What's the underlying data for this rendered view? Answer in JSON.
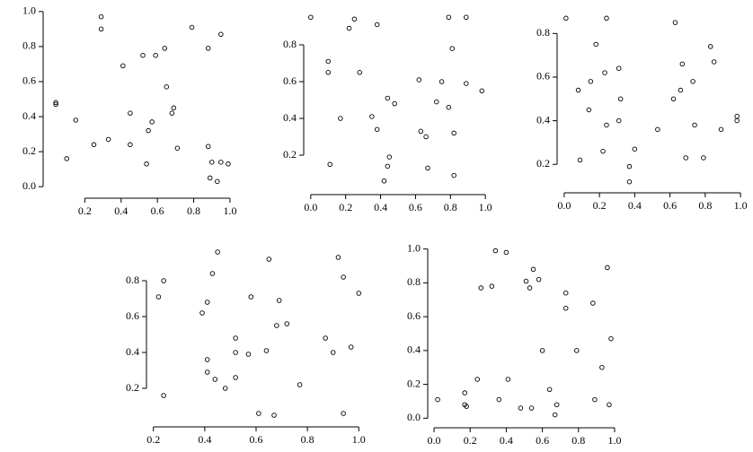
{
  "chart_data": [
    {
      "type": "scatter",
      "x": [
        0.04,
        0.04,
        0.29,
        0.29,
        0.79,
        0.95,
        0.64,
        0.52,
        0.59,
        0.88,
        0.41,
        0.65,
        0.69,
        0.68,
        0.45,
        0.15,
        0.57,
        0.55,
        0.33,
        0.25,
        0.45,
        0.71,
        0.88,
        0.1,
        0.54,
        0.9,
        0.95,
        0.99,
        0.89,
        0.93
      ],
      "values": [
        0.48,
        0.47,
        0.97,
        0.9,
        0.91,
        0.87,
        0.79,
        0.75,
        0.75,
        0.79,
        0.69,
        0.57,
        0.45,
        0.42,
        0.42,
        0.38,
        0.37,
        0.32,
        0.27,
        0.24,
        0.24,
        0.22,
        0.23,
        0.16,
        0.13,
        0.14,
        0.14,
        0.13,
        0.05,
        0.03
      ],
      "xlim": [
        -0.02,
        1.03
      ],
      "ylim": [
        -0.04,
        1.03
      ],
      "xticks": [
        0.2,
        0.4,
        0.6,
        0.8,
        {
          "value": 1,
          "label": "1.0"
        }
      ],
      "yticks": [
        {
          "value": 0,
          "label": "0.0"
        },
        0.2,
        0.4,
        0.6,
        0.8,
        {
          "value": 1,
          "label": "1.0"
        }
      ]
    },
    {
      "type": "scatter",
      "x": [
        0.0,
        0.1,
        0.1,
        0.11,
        0.17,
        0.22,
        0.25,
        0.28,
        0.38,
        0.35,
        0.38,
        0.44,
        0.48,
        0.45,
        0.44,
        0.42,
        0.62,
        0.63,
        0.66,
        0.67,
        0.72,
        0.75,
        0.79,
        0.79,
        0.81,
        0.82,
        0.82,
        0.89,
        0.89,
        0.98
      ],
      "values": [
        0.95,
        0.71,
        0.65,
        0.15,
        0.4,
        0.89,
        0.94,
        0.65,
        0.91,
        0.41,
        0.34,
        0.51,
        0.48,
        0.19,
        0.14,
        0.06,
        0.61,
        0.33,
        0.3,
        0.13,
        0.49,
        0.6,
        0.46,
        0.95,
        0.78,
        0.32,
        0.09,
        0.95,
        0.59,
        0.55
      ],
      "xlim": [
        -0.03,
        1.03
      ],
      "ylim": [
        0.01,
        1.0
      ],
      "xticks": [
        {
          "value": 0,
          "label": "0.0"
        },
        0.2,
        0.4,
        0.6,
        0.8,
        {
          "value": 1,
          "label": "1.0"
        }
      ],
      "yticks": [
        0.2,
        0.4,
        0.6,
        0.8
      ]
    },
    {
      "type": "scatter",
      "x": [
        0.01,
        0.24,
        0.63,
        0.18,
        0.83,
        0.85,
        0.67,
        0.08,
        0.15,
        0.23,
        0.31,
        0.66,
        0.73,
        0.62,
        0.32,
        0.14,
        0.24,
        0.31,
        0.53,
        0.74,
        0.89,
        0.98,
        0.98,
        0.09,
        0.22,
        0.4,
        0.37,
        0.37,
        0.69,
        0.79
      ],
      "values": [
        0.87,
        0.87,
        0.85,
        0.75,
        0.74,
        0.67,
        0.66,
        0.54,
        0.58,
        0.62,
        0.64,
        0.54,
        0.58,
        0.5,
        0.5,
        0.45,
        0.38,
        0.4,
        0.36,
        0.38,
        0.36,
        0.42,
        0.4,
        0.22,
        0.26,
        0.27,
        0.19,
        0.12,
        0.23,
        0.23
      ],
      "xlim": [
        -0.03,
        1.02
      ],
      "ylim": [
        0.09,
        0.9
      ],
      "xticks": [
        {
          "value": 0,
          "label": "0.0"
        },
        0.2,
        0.4,
        0.6,
        0.8,
        {
          "value": 1,
          "label": "1.0"
        }
      ],
      "yticks": [
        0.2,
        0.4,
        0.6,
        0.8
      ]
    },
    {
      "type": "scatter",
      "x": [
        0.22,
        0.24,
        0.45,
        0.43,
        0.65,
        0.92,
        0.94,
        1.0,
        0.69,
        0.58,
        0.41,
        0.39,
        0.72,
        0.68,
        0.64,
        0.52,
        0.87,
        0.97,
        0.9,
        0.57,
        0.52,
        0.41,
        0.41,
        0.44,
        0.52,
        0.48,
        0.77,
        0.24,
        0.61,
        0.67,
        0.94
      ],
      "values": [
        0.71,
        0.8,
        0.96,
        0.84,
        0.92,
        0.93,
        0.82,
        0.73,
        0.69,
        0.71,
        0.68,
        0.62,
        0.56,
        0.55,
        0.41,
        0.48,
        0.48,
        0.43,
        0.4,
        0.39,
        0.4,
        0.36,
        0.29,
        0.25,
        0.26,
        0.2,
        0.22,
        0.16,
        0.06,
        0.05,
        0.06
      ],
      "xlim": [
        0.18,
        1.02
      ],
      "ylim": [
        0.01,
        1.015
      ],
      "xticks": [
        0.2,
        0.4,
        0.6,
        0.8,
        {
          "value": 1,
          "label": "1.0"
        }
      ],
      "yticks": [
        0.2,
        0.4,
        0.6,
        0.8
      ]
    },
    {
      "type": "scatter",
      "x": [
        0.02,
        0.17,
        0.17,
        0.18,
        0.24,
        0.26,
        0.32,
        0.34,
        0.4,
        0.36,
        0.41,
        0.48,
        0.51,
        0.53,
        0.55,
        0.58,
        0.6,
        0.54,
        0.64,
        0.68,
        0.67,
        0.73,
        0.73,
        0.79,
        0.88,
        0.89,
        0.93,
        0.96,
        0.98,
        0.97
      ],
      "values": [
        0.11,
        0.15,
        0.08,
        0.07,
        0.23,
        0.77,
        0.78,
        0.99,
        0.98,
        0.11,
        0.23,
        0.06,
        0.81,
        0.77,
        0.88,
        0.82,
        0.4,
        0.06,
        0.17,
        0.08,
        0.02,
        0.74,
        0.65,
        0.4,
        0.68,
        0.11,
        0.3,
        0.89,
        0.47,
        0.08
      ],
      "xlim": [
        -0.025,
        1.03
      ],
      "ylim": [
        -0.03,
        1.03
      ],
      "xticks": [
        {
          "value": 0,
          "label": "0.0"
        },
        0.2,
        0.4,
        0.6,
        0.8,
        {
          "value": 1,
          "label": "1.0"
        }
      ],
      "yticks": [
        {
          "value": 0,
          "label": "0.0"
        },
        0.2,
        0.4,
        0.6,
        0.8,
        {
          "value": 1,
          "label": "1.0"
        }
      ]
    }
  ]
}
